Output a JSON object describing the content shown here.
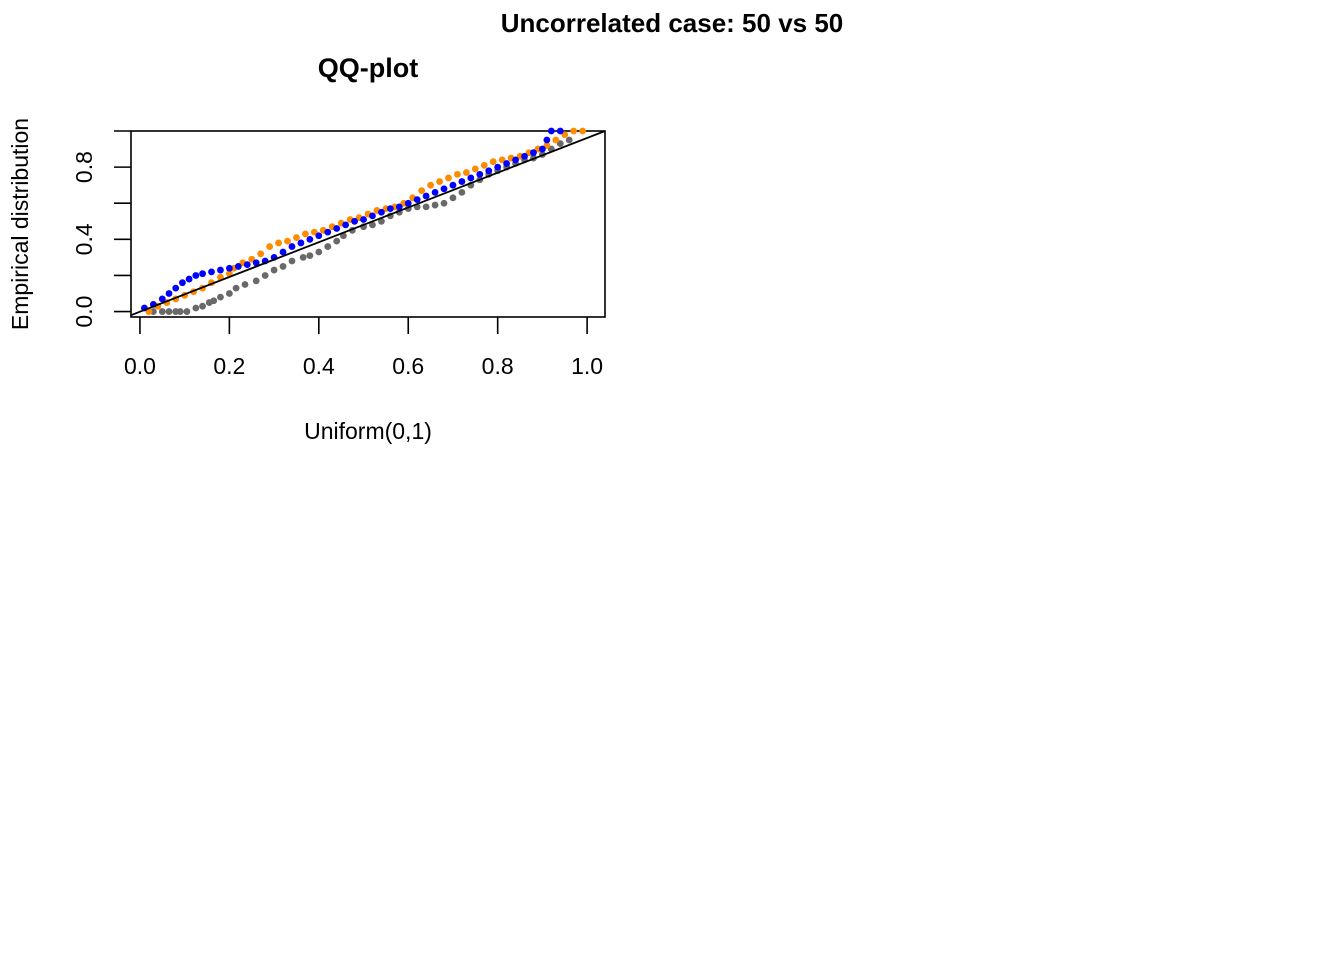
{
  "figure": {
    "title": "Uncorrelated case: 50 vs 50"
  },
  "chart_data": {
    "type": "scatter",
    "title": "QQ-plot",
    "xlabel": "Uniform(0,1)",
    "ylabel": "Empirical distribution",
    "xlim": [
      -0.02,
      1.04
    ],
    "ylim": [
      -0.03,
      1.0
    ],
    "x_ticks": [
      0.0,
      0.2,
      0.4,
      0.6,
      0.8,
      1.0
    ],
    "x_tick_labels": [
      "0.0",
      "0.2",
      "0.4",
      "0.6",
      "0.8",
      "1.0"
    ],
    "y_ticks": [
      0.0,
      0.2,
      0.4,
      0.6,
      0.8,
      1.0
    ],
    "y_tick_labels": [
      "0.0",
      "",
      "0.4",
      "",
      "0.8",
      ""
    ],
    "grid": false,
    "reference_line": {
      "from": [
        0,
        0
      ],
      "to": [
        1,
        1
      ],
      "color": "#000000"
    },
    "series": [
      {
        "color": "#696969",
        "points": [
          [
            0.03,
            0.0
          ],
          [
            0.05,
            0.0
          ],
          [
            0.065,
            0.0
          ],
          [
            0.08,
            0.0
          ],
          [
            0.09,
            0.0
          ],
          [
            0.105,
            0.0
          ],
          [
            0.125,
            0.02
          ],
          [
            0.14,
            0.03
          ],
          [
            0.155,
            0.05
          ],
          [
            0.165,
            0.06
          ],
          [
            0.18,
            0.08
          ],
          [
            0.2,
            0.1
          ],
          [
            0.215,
            0.13
          ],
          [
            0.235,
            0.15
          ],
          [
            0.26,
            0.17
          ],
          [
            0.28,
            0.2
          ],
          [
            0.3,
            0.23
          ],
          [
            0.32,
            0.25
          ],
          [
            0.34,
            0.28
          ],
          [
            0.365,
            0.3
          ],
          [
            0.38,
            0.31
          ],
          [
            0.4,
            0.33
          ],
          [
            0.42,
            0.36
          ],
          [
            0.44,
            0.39
          ],
          [
            0.455,
            0.42
          ],
          [
            0.475,
            0.45
          ],
          [
            0.5,
            0.47
          ],
          [
            0.52,
            0.48
          ],
          [
            0.54,
            0.5
          ],
          [
            0.56,
            0.53
          ],
          [
            0.58,
            0.55
          ],
          [
            0.6,
            0.57
          ],
          [
            0.62,
            0.58
          ],
          [
            0.64,
            0.58
          ],
          [
            0.66,
            0.59
          ],
          [
            0.68,
            0.6
          ],
          [
            0.7,
            0.63
          ],
          [
            0.72,
            0.66
          ],
          [
            0.74,
            0.7
          ],
          [
            0.76,
            0.73
          ],
          [
            0.78,
            0.76
          ],
          [
            0.8,
            0.78
          ],
          [
            0.82,
            0.8
          ],
          [
            0.84,
            0.82
          ],
          [
            0.86,
            0.84
          ],
          [
            0.88,
            0.85
          ],
          [
            0.9,
            0.87
          ],
          [
            0.92,
            0.9
          ],
          [
            0.94,
            0.93
          ],
          [
            0.96,
            0.95
          ]
        ]
      },
      {
        "color": "#FF8C00",
        "points": [
          [
            0.02,
            0.0
          ],
          [
            0.04,
            0.03
          ],
          [
            0.06,
            0.05
          ],
          [
            0.08,
            0.07
          ],
          [
            0.1,
            0.09
          ],
          [
            0.12,
            0.11
          ],
          [
            0.14,
            0.13
          ],
          [
            0.16,
            0.16
          ],
          [
            0.18,
            0.19
          ],
          [
            0.2,
            0.21
          ],
          [
            0.21,
            0.24
          ],
          [
            0.23,
            0.27
          ],
          [
            0.25,
            0.29
          ],
          [
            0.27,
            0.32
          ],
          [
            0.29,
            0.36
          ],
          [
            0.31,
            0.38
          ],
          [
            0.33,
            0.39
          ],
          [
            0.35,
            0.41
          ],
          [
            0.37,
            0.43
          ],
          [
            0.39,
            0.44
          ],
          [
            0.41,
            0.45
          ],
          [
            0.43,
            0.47
          ],
          [
            0.45,
            0.49
          ],
          [
            0.47,
            0.51
          ],
          [
            0.49,
            0.52
          ],
          [
            0.51,
            0.54
          ],
          [
            0.53,
            0.56
          ],
          [
            0.55,
            0.57
          ],
          [
            0.57,
            0.58
          ],
          [
            0.59,
            0.6
          ],
          [
            0.61,
            0.63
          ],
          [
            0.63,
            0.67
          ],
          [
            0.65,
            0.7
          ],
          [
            0.67,
            0.72
          ],
          [
            0.69,
            0.74
          ],
          [
            0.71,
            0.76
          ],
          [
            0.73,
            0.77
          ],
          [
            0.75,
            0.79
          ],
          [
            0.77,
            0.81
          ],
          [
            0.79,
            0.83
          ],
          [
            0.81,
            0.84
          ],
          [
            0.83,
            0.85
          ],
          [
            0.85,
            0.86
          ],
          [
            0.87,
            0.88
          ],
          [
            0.89,
            0.9
          ],
          [
            0.91,
            0.92
          ],
          [
            0.93,
            0.95
          ],
          [
            0.95,
            0.98
          ],
          [
            0.97,
            1.0
          ],
          [
            0.99,
            1.0
          ]
        ]
      },
      {
        "color": "#0000FF",
        "points": [
          [
            0.01,
            0.02
          ],
          [
            0.03,
            0.04
          ],
          [
            0.05,
            0.07
          ],
          [
            0.065,
            0.1
          ],
          [
            0.08,
            0.13
          ],
          [
            0.095,
            0.16
          ],
          [
            0.11,
            0.18
          ],
          [
            0.125,
            0.2
          ],
          [
            0.14,
            0.21
          ],
          [
            0.16,
            0.22
          ],
          [
            0.18,
            0.23
          ],
          [
            0.2,
            0.24
          ],
          [
            0.22,
            0.25
          ],
          [
            0.24,
            0.26
          ],
          [
            0.26,
            0.27
          ],
          [
            0.28,
            0.28
          ],
          [
            0.3,
            0.3
          ],
          [
            0.32,
            0.33
          ],
          [
            0.34,
            0.36
          ],
          [
            0.36,
            0.38
          ],
          [
            0.38,
            0.4
          ],
          [
            0.4,
            0.42
          ],
          [
            0.42,
            0.44
          ],
          [
            0.44,
            0.46
          ],
          [
            0.46,
            0.48
          ],
          [
            0.48,
            0.5
          ],
          [
            0.5,
            0.51
          ],
          [
            0.52,
            0.53
          ],
          [
            0.54,
            0.55
          ],
          [
            0.56,
            0.57
          ],
          [
            0.58,
            0.58
          ],
          [
            0.6,
            0.6
          ],
          [
            0.62,
            0.62
          ],
          [
            0.64,
            0.64
          ],
          [
            0.66,
            0.66
          ],
          [
            0.68,
            0.68
          ],
          [
            0.7,
            0.7
          ],
          [
            0.72,
            0.72
          ],
          [
            0.74,
            0.74
          ],
          [
            0.76,
            0.76
          ],
          [
            0.78,
            0.78
          ],
          [
            0.8,
            0.8
          ],
          [
            0.82,
            0.82
          ],
          [
            0.84,
            0.84
          ],
          [
            0.86,
            0.86
          ],
          [
            0.88,
            0.88
          ],
          [
            0.9,
            0.9
          ],
          [
            0.91,
            0.95
          ],
          [
            0.92,
            1.0
          ],
          [
            0.94,
            1.0
          ]
        ]
      }
    ]
  }
}
